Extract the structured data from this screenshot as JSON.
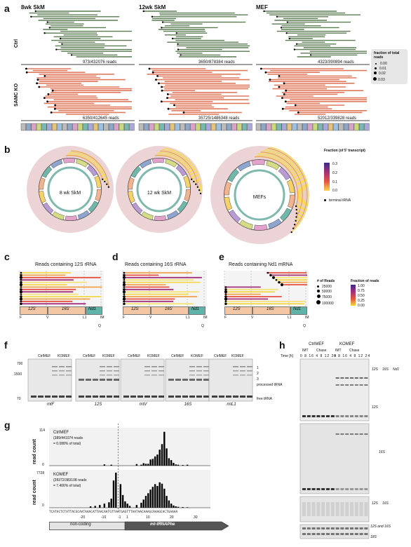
{
  "panel_a": {
    "label": "a",
    "columns": [
      "8wk SkM",
      "12wk SkM",
      "MEF"
    ],
    "rows": [
      "Ctrl",
      "SAMC KO"
    ],
    "reads": {
      "ctrl": [
        "973/432076 reads",
        "3650/878384 reads",
        "4323/390894 reads"
      ],
      "ko": [
        "6350/412645 reads",
        "35725/1486348 reads",
        "52012/339828 reads"
      ]
    },
    "legend_title": "fraction of total reads",
    "legend_items": [
      "0.00",
      "0.01",
      "0.02",
      "0.03"
    ],
    "colors": {
      "ctrl": "#5a7a52",
      "ko": "#e07a5f"
    }
  },
  "panel_b": {
    "label": "b",
    "circles": [
      "8 wk SkM",
      "12 wk SkM",
      "MEFs"
    ],
    "legend_title": "Fraction (of 5' transcript)",
    "legend_ticks": [
      "0.3",
      "0.2",
      "0.1",
      "0.0"
    ],
    "terminal_label": "terminal tRNA"
  },
  "panel_c": {
    "label": "c",
    "title": "Reads containing 12S rRNA",
    "genes": [
      "12S",
      "16S",
      "Nd1"
    ],
    "marks": [
      "F",
      "V",
      "L1",
      "IM",
      "Q"
    ]
  },
  "panel_d": {
    "label": "d",
    "title": "Reads containing 16S rRNA",
    "genes": [
      "12S",
      "16S",
      "Nd1"
    ],
    "marks": [
      "F",
      "V",
      "L1",
      "IM",
      "Q"
    ]
  },
  "panel_e": {
    "label": "e",
    "title": "Reads containing Nd1 mRNA",
    "genes": [
      "12S",
      "16S",
      "Nd1"
    ],
    "marks": [
      "F",
      "V",
      "L1",
      "IM",
      "Q"
    ],
    "size_legend_title": "# of Reads",
    "size_legend": [
      "25000",
      "50000",
      "75000",
      "100000"
    ],
    "color_legend_title": "Fraction of reads",
    "color_legend": [
      "1.00",
      "0.75",
      "0.50",
      "0.25",
      "0.00"
    ]
  },
  "panel_f": {
    "label": "f",
    "groups": [
      "CtrlMEF",
      "KOMEF"
    ],
    "blots": [
      "mtF",
      "12S",
      "mtV",
      "16S",
      "mtL1"
    ],
    "size_marks": [
      "700",
      "1500",
      "70"
    ],
    "bands": [
      "1",
      "2",
      "3"
    ],
    "processed_label": "processed tRNA",
    "free_label": "free tRNA"
  },
  "panel_g": {
    "label": "g",
    "ctrl_label": "CtrlMEF",
    "ctrl_stats": "(389/441074 reads",
    "ctrl_pct": "= 0.088% of total)",
    "ko_label": "KOMEF",
    "ko_stats": "(28372/383108 reads",
    "ko_pct": "= 7.406% of total)",
    "y_label": "read count",
    "ctrl_ymax": "114",
    "ko_ymax": "7728",
    "x_ticks": [
      "-20",
      "-10",
      "-1",
      "1",
      "10",
      "20",
      "30"
    ],
    "sequence": "TCATACTCTATTACGCAATAAACATTAACAATGTTAATGAGTTTAATAACAAAGCAAAGCACTGAAAA",
    "noncoding_label": "non-coding",
    "trna_label": "mt-tRNAPhe"
  },
  "panel_h": {
    "label": "h",
    "groups": [
      "CtrlMEF",
      "KOMEF"
    ],
    "conditions": [
      "IMT",
      "Chase"
    ],
    "time_label": "Time [h]",
    "times": [
      "0",
      "8",
      "16",
      "4",
      "8",
      "12",
      "24"
    ],
    "right_labels_1": [
      "12S",
      "16S",
      "Nd1"
    ],
    "right_labels_2": [
      "12S"
    ],
    "right_labels_3": [
      "16S"
    ],
    "right_labels_4": [
      "12S",
      "16S"
    ],
    "bottom_labels": [
      "12S and 16S",
      "18S"
    ]
  },
  "chart_data": [
    {
      "type": "bar",
      "title": "",
      "series": [
        {
          "name": "CtrlMEF",
          "x": [
            -6,
            -3,
            8,
            10,
            11,
            12,
            13,
            14,
            15,
            16,
            17,
            18,
            19,
            20,
            21,
            22,
            23,
            24,
            25,
            26,
            28,
            30
          ],
          "values": [
            4,
            3,
            5,
            3,
            8,
            6,
            6,
            20,
            22,
            30,
            36,
            52,
            70,
            110,
            56,
            24,
            18,
            9,
            4,
            3,
            2,
            3
          ]
        },
        {
          "name": "KOMEF",
          "x": [
            -12,
            -10,
            -8,
            -6,
            -4,
            -3,
            -2,
            -1,
            1,
            2,
            3,
            4,
            5,
            8,
            10,
            11,
            12,
            13,
            14,
            15,
            16,
            17,
            18,
            19,
            20,
            21,
            22,
            23,
            24,
            25,
            26,
            28,
            30
          ],
          "values": [
            300,
            400,
            600,
            900,
            1200,
            2000,
            6000,
            7728,
            5200,
            2800,
            1400,
            900,
            400,
            600,
            1100,
            1800,
            2600,
            3200,
            4000,
            4600,
            5200,
            4800,
            5600,
            5300,
            4200,
            2600,
            1600,
            900,
            500,
            300,
            200,
            150,
            100
          ]
        }
      ],
      "xlim": [
        -30,
        40
      ]
    }
  ]
}
